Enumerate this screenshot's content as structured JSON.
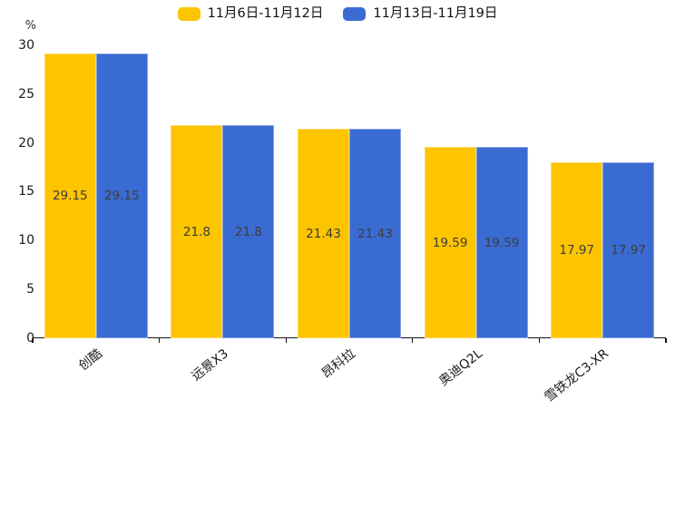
{
  "chart_data": {
    "type": "bar",
    "title": "",
    "ylabel": "%",
    "categories": [
      "创酷",
      "远景X3",
      "昂科拉",
      "奥迪Q2L",
      "雪铁龙C3-XR"
    ],
    "series": [
      {
        "name": "11月6日-11月12日",
        "color": "#FDC400",
        "values": [
          29.15,
          21.8,
          21.43,
          19.59,
          17.97
        ]
      },
      {
        "name": "11月13日-11月19日",
        "color": "#3A6BD2",
        "values": [
          29.15,
          21.8,
          21.43,
          19.59,
          17.97
        ]
      }
    ],
    "ylim": [
      0,
      30
    ],
    "yticks": [
      0,
      5,
      10,
      15,
      20,
      25,
      30
    ],
    "legend_position": "top-center",
    "grid": false,
    "value_labels_shown": true,
    "value_labels_position": "center-of-bar",
    "xlabel_rotation_deg": 38,
    "colors": {
      "axis": "#141414",
      "tick_text": "#1a1a1a",
      "bar_value_text": "#3d3d3d",
      "background": "#ffffff"
    }
  }
}
